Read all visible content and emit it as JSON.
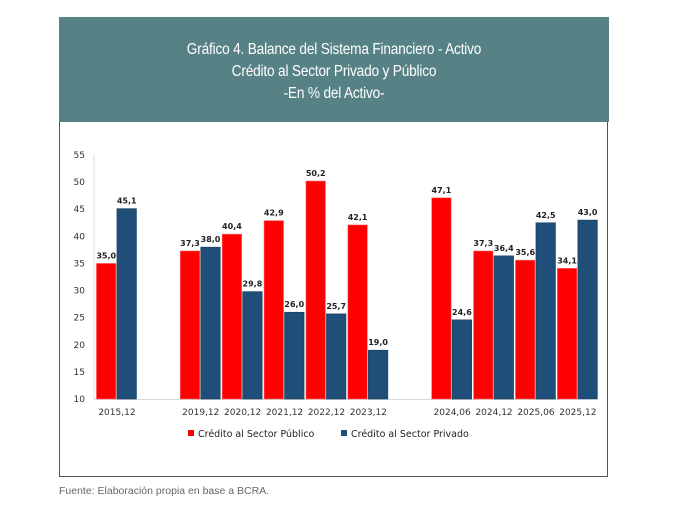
{
  "header": {
    "title_line1": "Gráfico 4. Balance del Sistema Financiero - Activo",
    "title_line2": "Crédito al Sector Privado y Público",
    "title_line3": "-En % del Activo-"
  },
  "source": "Fuente: Elaboración propia en base a BCRA.",
  "colors": {
    "publico": "#ff0000",
    "privado": "#1f4e79",
    "header_bg": "#578285"
  },
  "chart_data": {
    "type": "bar",
    "title": "Gráfico 4. Balance del Sistema Financiero - Activo. Crédito al Sector Privado y Público -En % del Activo-",
    "xlabel": "",
    "ylabel": "",
    "ylim": [
      10,
      55
    ],
    "yticks": [
      10,
      15,
      20,
      25,
      30,
      35,
      40,
      45,
      50,
      55
    ],
    "grid": false,
    "legend_position": "bottom",
    "categories": [
      "2015,12",
      "",
      "2019,12",
      "2020,12",
      "2021,12",
      "2022,12",
      "2023,12",
      "",
      "2024,06",
      "2024,12",
      "2025,06",
      "2025,12"
    ],
    "series": [
      {
        "name": "Crédito al Sector Público",
        "color": "#ff0000",
        "values": [
          35.0,
          null,
          37.3,
          40.4,
          42.9,
          50.2,
          42.1,
          null,
          47.1,
          37.3,
          35.6,
          34.1
        ],
        "labels": [
          "35,0",
          "",
          "37,3",
          "40,4",
          "42,9",
          "50,2",
          "42,1",
          "",
          "47,1",
          "37,3",
          "35,6",
          "34,1"
        ]
      },
      {
        "name": "Crédito al Sector Privado",
        "color": "#1f4e79",
        "values": [
          45.1,
          null,
          38.0,
          29.8,
          26.0,
          25.7,
          19.0,
          null,
          24.6,
          36.4,
          42.5,
          43.0
        ],
        "labels": [
          "45,1",
          "",
          "38,0",
          "29,8",
          "26,0",
          "25,7",
          "19,0",
          "",
          "24,6",
          "36,4",
          "42,5",
          "43,0"
        ]
      }
    ]
  }
}
